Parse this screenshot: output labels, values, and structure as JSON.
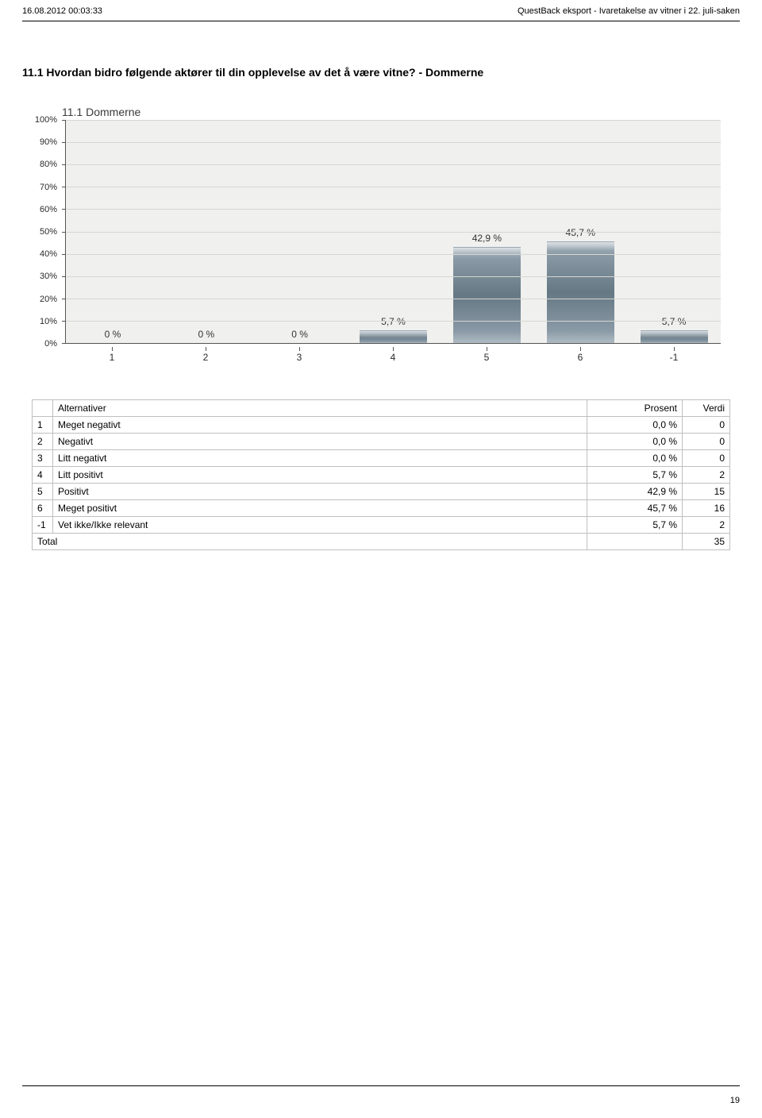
{
  "header": {
    "left": "16.08.2012 00:03:33",
    "right": "QuestBack eksport - Ivaretakelse av vitner i 22. juli-saken"
  },
  "title": "11.1 Hvordan bidro følgende aktører til din opplevelse av det å være vitne? - Dommerne",
  "chart": {
    "type": "bar",
    "title": "11.1 Dommerne",
    "title_fontsize": 14,
    "title_color": "#3a3a3a",
    "background_color": "#f0f0ee",
    "grid_color": "#d6d6d2",
    "axis_color": "#555555",
    "bar_color_gradient": [
      "#b0bcc4",
      "#8a9aa6",
      "#657884",
      "#8a9aa6",
      "#b0bcc4"
    ],
    "label_fontsize": 12,
    "label_color": "#333333",
    "ylim": [
      0,
      100
    ],
    "ytick_step": 10,
    "ytick_labels": [
      "0%",
      "10%",
      "20%",
      "30%",
      "40%",
      "50%",
      "60%",
      "70%",
      "80%",
      "90%",
      "100%"
    ],
    "categories": [
      "1",
      "2",
      "3",
      "4",
      "5",
      "6",
      "-1"
    ],
    "values": [
      0,
      0,
      0,
      5.7,
      42.9,
      45.7,
      5.7
    ],
    "value_labels": [
      "0 %",
      "0 %",
      "0 %",
      "5,7 %",
      "42,9 %",
      "45,7 %",
      "5,7 %"
    ],
    "bar_width": 0.72
  },
  "table": {
    "columns": [
      "Alternativer",
      "Prosent",
      "Verdi"
    ],
    "rows": [
      {
        "id": "1",
        "alt": "Meget negativt",
        "prosent": "0,0 %",
        "verdi": "0"
      },
      {
        "id": "2",
        "alt": "Negativt",
        "prosent": "0,0 %",
        "verdi": "0"
      },
      {
        "id": "3",
        "alt": "Litt negativt",
        "prosent": "0,0 %",
        "verdi": "0"
      },
      {
        "id": "4",
        "alt": "Litt positivt",
        "prosent": "5,7 %",
        "verdi": "2"
      },
      {
        "id": "5",
        "alt": "Positivt",
        "prosent": "42,9 %",
        "verdi": "15"
      },
      {
        "id": "6",
        "alt": "Meget positivt",
        "prosent": "45,7 %",
        "verdi": "16"
      },
      {
        "id": "-1",
        "alt": "Vet ikke/Ikke relevant",
        "prosent": "5,7 %",
        "verdi": "2"
      }
    ],
    "total_label": "Total",
    "total_value": "35",
    "border_color": "#bfbfbf",
    "fontsize": 12
  },
  "page_number": "19"
}
